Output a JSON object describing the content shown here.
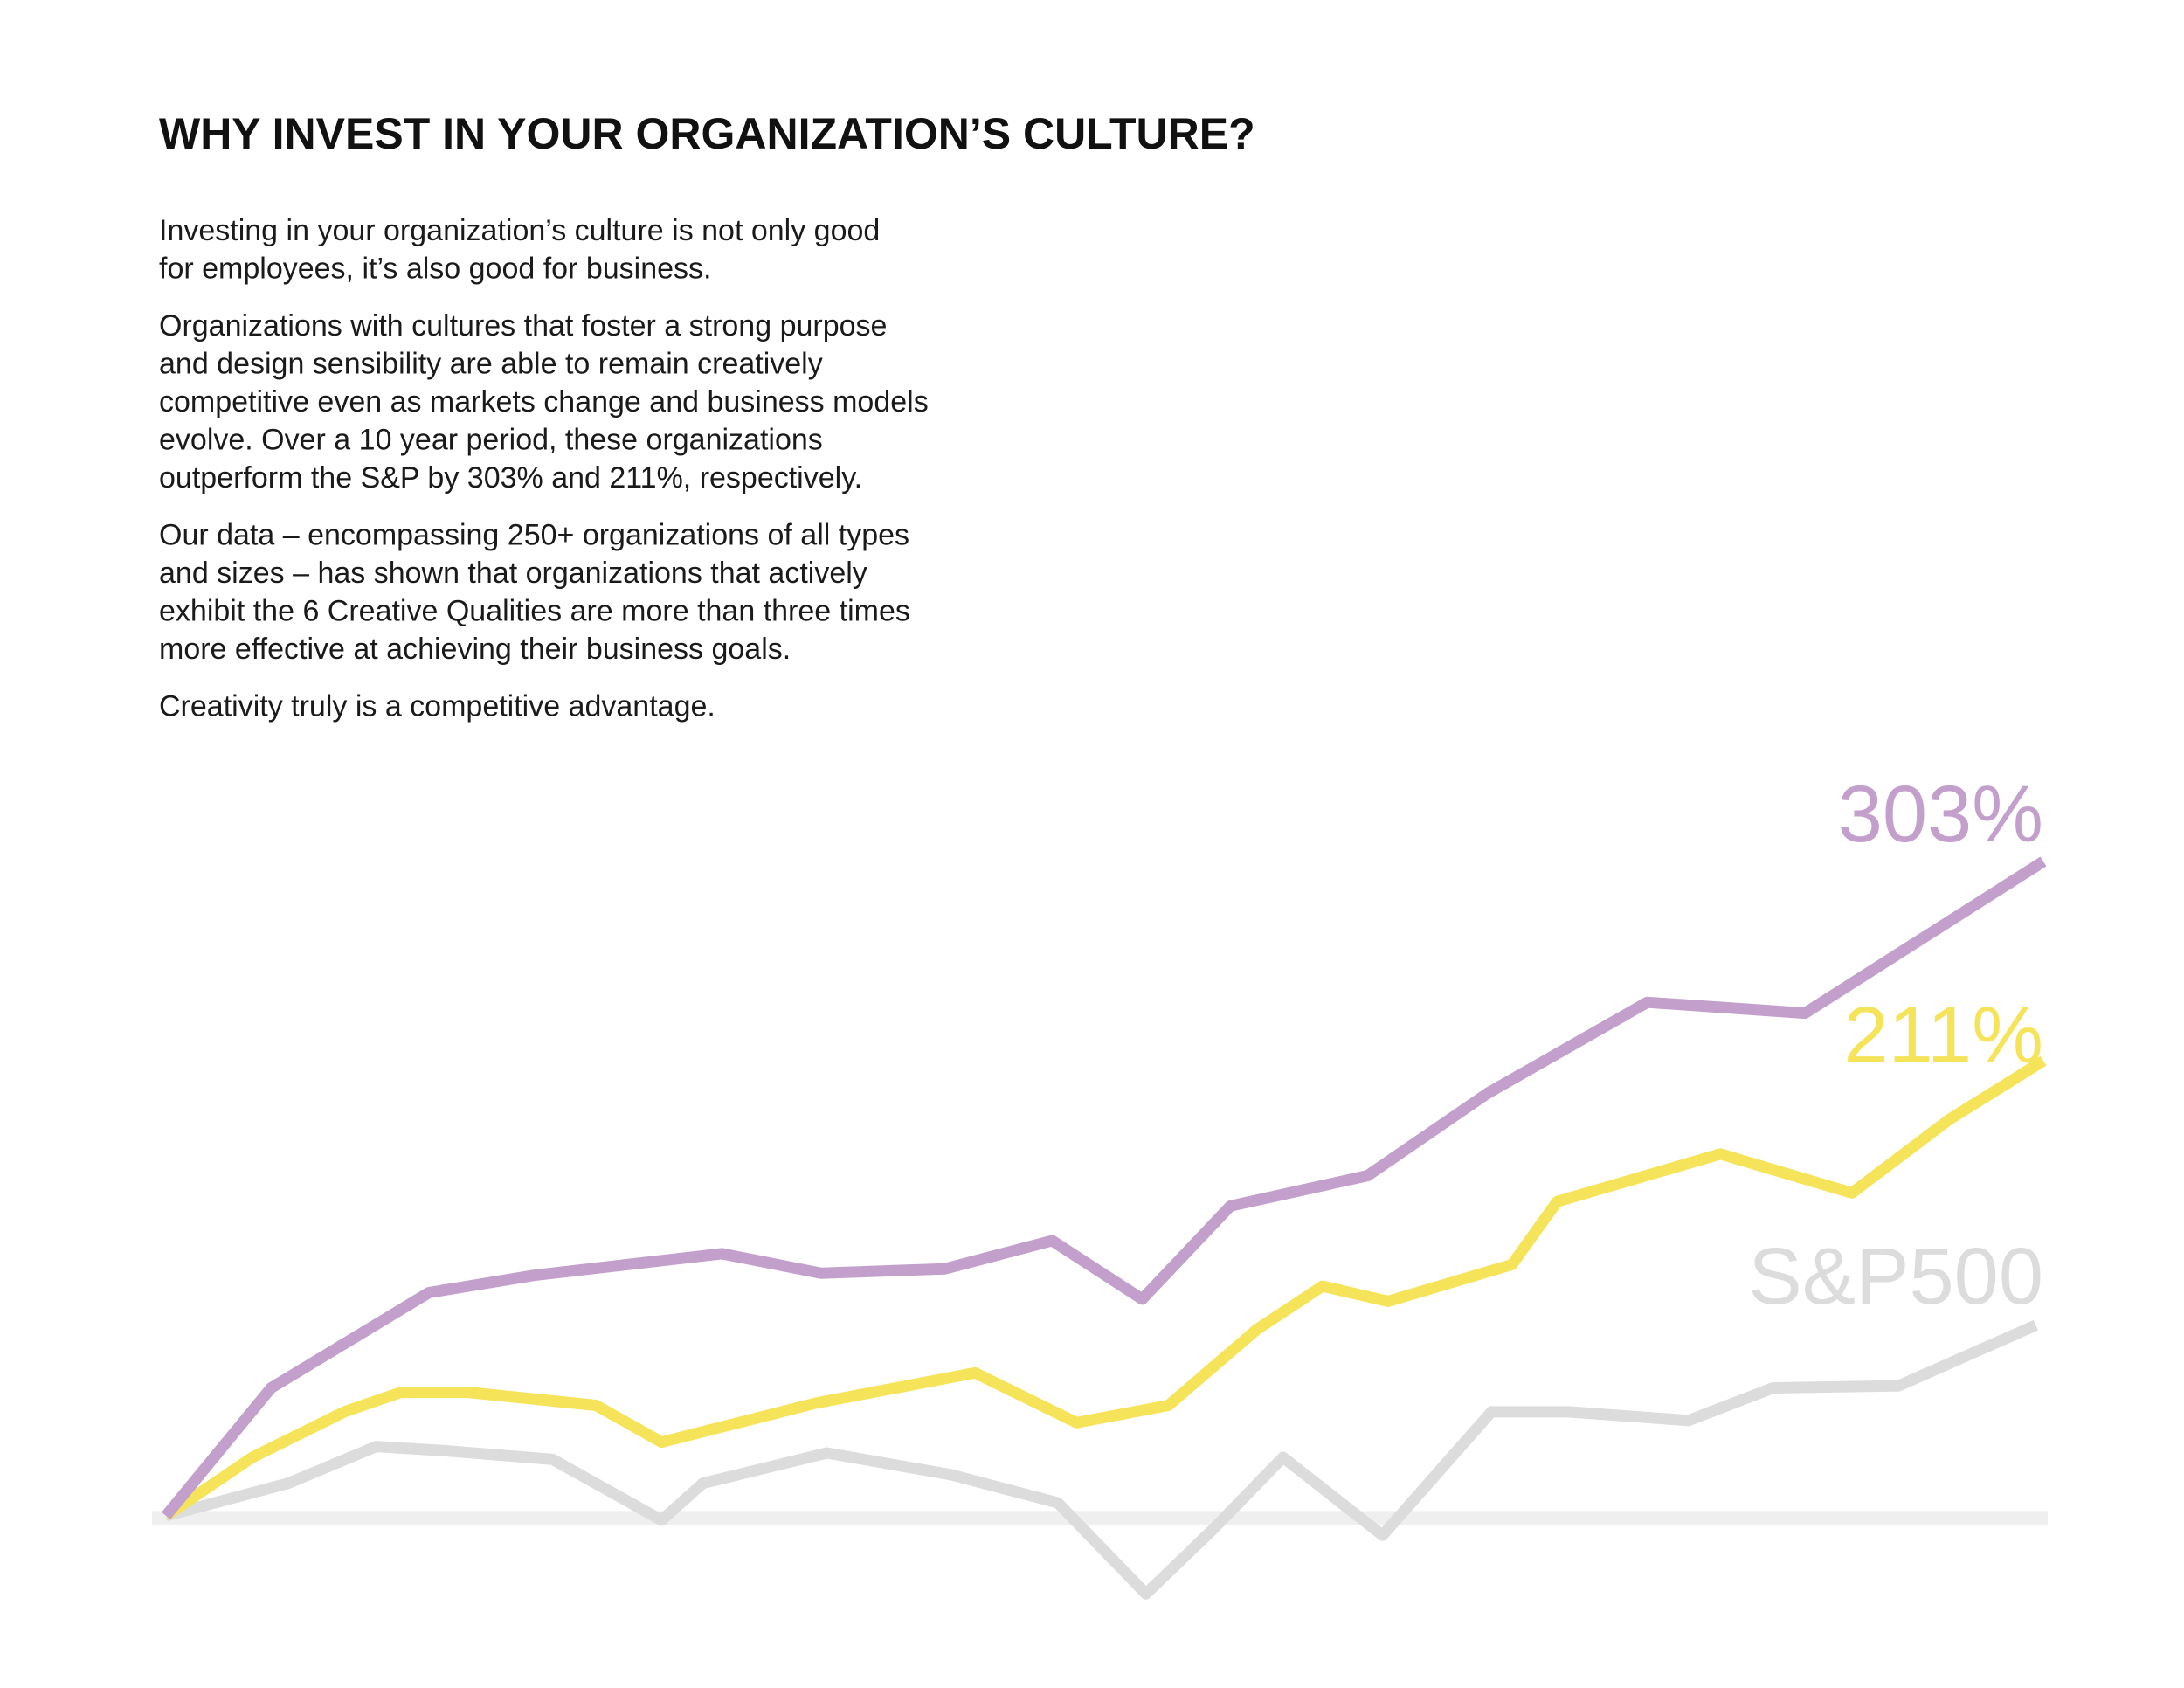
{
  "title": "WHY INVEST IN YOUR ORGANIZATION’S CULTURE?",
  "paragraphs": [
    [
      "Investing in your organization’s culture is not only good",
      "for employees, it’s also good for business."
    ],
    [
      "Organizations with cultures that foster a strong purpose",
      "and design sensibility are able to remain creatively",
      "competitive even as markets change and business models",
      "evolve. Over a 10 year period, these organizations",
      "outperform the S&P by 303% and 211%, respectively."
    ],
    [
      "Our data – encompassing 250+ organizations of all types",
      "and sizes – has shown that organizations that actively",
      "exhibit the 6 Creative Qualities are more than three times",
      "more effective at achieving their business goals."
    ],
    [
      "Creativity truly is a competitive advantage."
    ]
  ],
  "chart_data": {
    "type": "line",
    "xlim": [
      0,
      10
    ],
    "ylim": [
      -45,
      303
    ],
    "yticks": [
      0
    ],
    "grid": true,
    "series": [
      {
        "color": "#c3a0cc",
        "x": [
          0,
          0.56,
          1.4,
          1.96,
          2.96,
          3.49,
          4.15,
          4.72,
          5.2,
          5.67,
          6.4,
          7.04,
          7.89,
          8.73,
          10
        ],
        "values": [
          1,
          60,
          104,
          112,
          122,
          113,
          115,
          128,
          101,
          144,
          158,
          196,
          238,
          233,
          303
        ],
        "value_labels": [
          null,
          null,
          null,
          null,
          null,
          null,
          null,
          null,
          null,
          null,
          null,
          null,
          null,
          null,
          "303%"
        ]
      },
      {
        "color": "#f5e45a",
        "x": [
          0,
          0.46,
          0.95,
          1.25,
          1.61,
          2.29,
          2.64,
          3.46,
          4.31,
          4.85,
          5.34,
          5.81,
          6.16,
          6.51,
          7.17,
          7.41,
          8.28,
          8.98,
          9.5,
          10
        ],
        "values": [
          1,
          28,
          49,
          58,
          58,
          52,
          35,
          53,
          67,
          44,
          52,
          87,
          107,
          100,
          117,
          146,
          168,
          150,
          184,
          211
        ],
        "value_labels": [
          null,
          null,
          null,
          null,
          null,
          null,
          null,
          null,
          null,
          null,
          null,
          null,
          null,
          null,
          null,
          null,
          null,
          null,
          null,
          "211%"
        ]
      },
      {
        "name": "S&P500",
        "color": "#dcdcdc",
        "x": [
          0,
          0.65,
          1.12,
          1.49,
          2.06,
          2.64,
          2.86,
          3.52,
          4.18,
          4.75,
          5.22,
          5.58,
          5.95,
          6.48,
          7.06,
          7.47,
          8.11,
          8.56,
          9.23,
          9.96
        ],
        "values": [
          1,
          16,
          33,
          31,
          27,
          -1,
          16,
          30,
          20,
          7,
          -35,
          -5,
          28,
          -8,
          49,
          49,
          45,
          60,
          61,
          89
        ]
      }
    ]
  }
}
